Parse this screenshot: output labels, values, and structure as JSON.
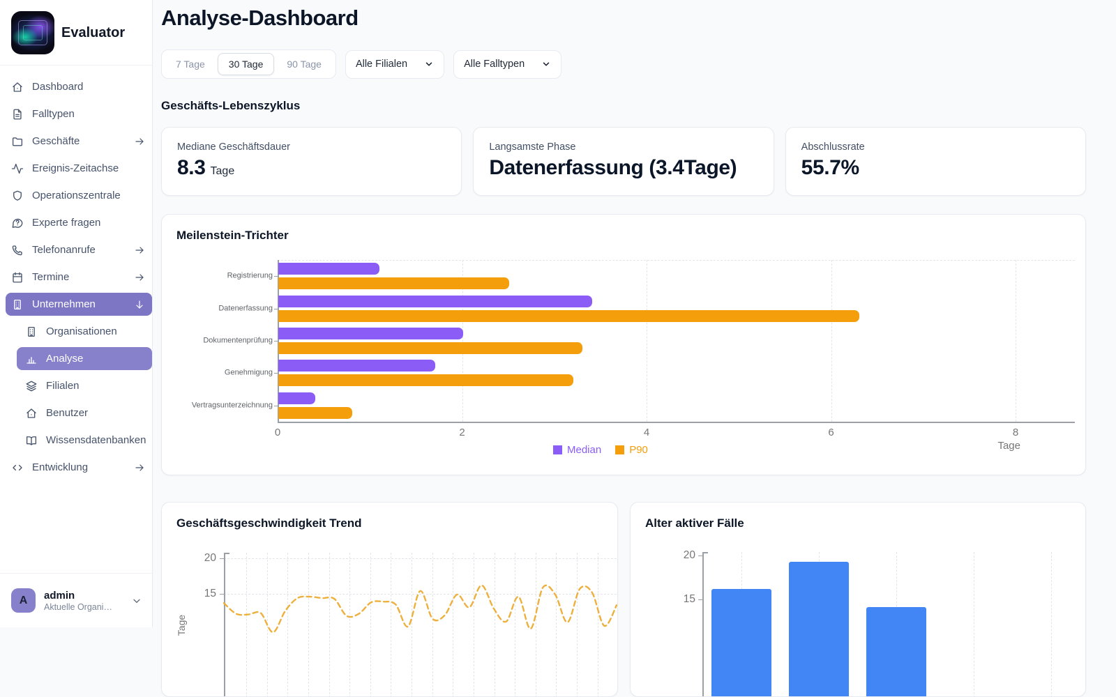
{
  "app": {
    "name": "Evaluator"
  },
  "sidebar": {
    "items": [
      {
        "label": "Dashboard",
        "icon": "home"
      },
      {
        "label": "Falltypen",
        "icon": "file"
      },
      {
        "label": "Geschäfte",
        "icon": "folder",
        "arrow": "right"
      },
      {
        "label": "Ereignis-Zeitachse",
        "icon": "activity"
      },
      {
        "label": "Operationszentrale",
        "icon": "shield"
      },
      {
        "label": "Experte fragen",
        "icon": "help-chat"
      },
      {
        "label": "Telefonanrufe",
        "icon": "phone",
        "arrow": "right"
      },
      {
        "label": "Termine",
        "icon": "calendar",
        "arrow": "right"
      },
      {
        "label": "Unternehmen",
        "icon": "building",
        "arrow": "down",
        "active": true
      },
      {
        "label": "Organisationen",
        "icon": "building",
        "sub": true
      },
      {
        "label": "Analyse",
        "icon": "bar-chart",
        "sub": true,
        "active": true
      },
      {
        "label": "Filialen",
        "icon": "layers",
        "sub": true
      },
      {
        "label": "Benutzer",
        "icon": "home",
        "sub": true
      },
      {
        "label": "Wissensdatenbanken",
        "icon": "book",
        "sub": true
      },
      {
        "label": "Entwicklung",
        "icon": "code",
        "arrow": "right"
      }
    ],
    "user": {
      "initial": "A",
      "name": "admin",
      "org": "Aktuelle Organi…"
    }
  },
  "header": {
    "title": "Analyse-Dashboard"
  },
  "filters": {
    "ranges": [
      "7 Tage",
      "30 Tage",
      "90 Tage"
    ],
    "selected_range": "30 Tage",
    "branch_filter": "Alle Filialen",
    "casetype_filter": "Alle Falltypen"
  },
  "section_title": "Geschäfts-Lebenszyklus",
  "kpis": [
    {
      "label": "Mediane Geschäftsdauer",
      "value": "8.3",
      "unit": "Tage"
    },
    {
      "label": "Langsamste Phase",
      "value": "Datenerfassung (3.4Tage)",
      "unit": ""
    },
    {
      "label": "Abschlussrate",
      "value": "55.7%",
      "unit": ""
    }
  ],
  "chart_data": [
    {
      "type": "bar",
      "orientation": "horizontal",
      "title": "Meilenstein-Trichter",
      "categories": [
        "Registrierung",
        "Datenerfassung",
        "Dokumentenprüfung",
        "Genehmigung",
        "Vertragsunterzeichnung"
      ],
      "series": [
        {
          "name": "Median",
          "color": "#8B5CF6",
          "values": [
            1.1,
            3.4,
            2.0,
            1.7,
            0.4
          ]
        },
        {
          "name": "P90",
          "color": "#F59E0B",
          "values": [
            2.5,
            6.3,
            3.3,
            3.2,
            0.8
          ]
        }
      ],
      "xlabel": "Tage",
      "xlim": [
        0,
        8
      ],
      "xticks": [
        0,
        2,
        4,
        6,
        8
      ],
      "grid": "vertical-dashed",
      "legend_position": "bottom"
    },
    {
      "type": "line",
      "title": "Geschäftsgeschwindigkeit Trend",
      "ylabel": "Tage",
      "yticks": [
        20,
        15
      ],
      "line_style": "dashed",
      "color": "#EDB03C",
      "grid": "dashed",
      "values": [
        13.7,
        12.2,
        12.1,
        12.3,
        9.6,
        12.6,
        14.4,
        14.6,
        14.4,
        14.3,
        11.9,
        12.2,
        13.8,
        13.9,
        13.5,
        10.4,
        15.4,
        11.5,
        12.0,
        14.9,
        13.1,
        16.2,
        12.9,
        11.1,
        14.6,
        10.1,
        15.9,
        14.9,
        11.0,
        15.7,
        15.2,
        10.5,
        13.4
      ]
    },
    {
      "type": "bar",
      "title": "Alter aktiver Fälle",
      "yticks": [
        20,
        15
      ],
      "color": "#4285F4",
      "grid": "vertical-dashed",
      "values": [
        16.2,
        19.3,
        14.1
      ],
      "slots": 5
    }
  ]
}
